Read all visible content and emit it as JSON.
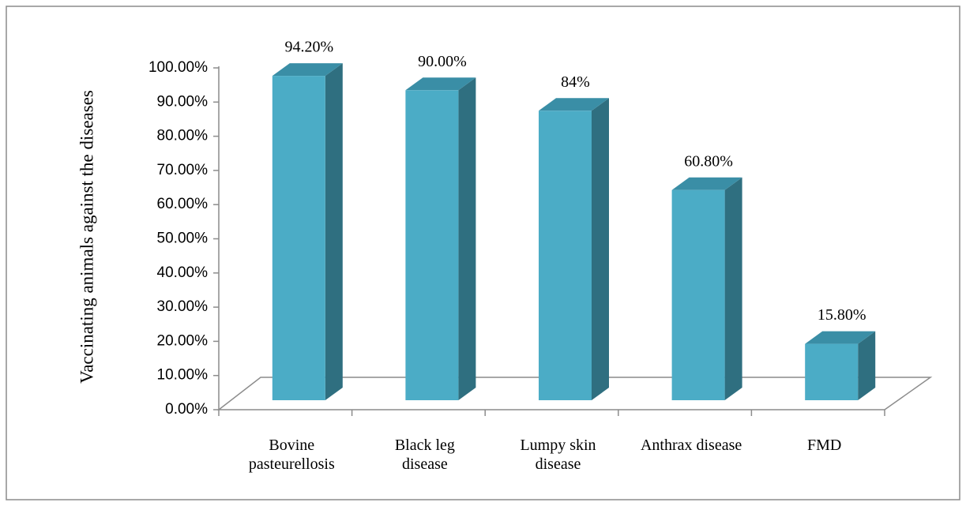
{
  "chart_data": {
    "type": "bar3d",
    "y_label": "Vaccinating animals against the diseases",
    "categories": [
      "Bovine pasteurellosis",
      "Black leg disease",
      "Lumpy skin disease",
      "Anthrax disease",
      "FMD"
    ],
    "values": [
      94.2,
      90,
      84,
      60.8,
      15.8
    ],
    "value_labels": [
      "94.20%",
      "90.00%",
      "84%",
      "60.80%",
      "15.80%"
    ],
    "color": "#4bacc6",
    "ylim": [
      0,
      100
    ],
    "yticks": [
      {
        "value": 0,
        "label": "0.00%"
      },
      {
        "value": 10,
        "label": "10.00%"
      },
      {
        "value": 20,
        "label": "20.00%"
      },
      {
        "value": 30,
        "label": "30.00%"
      },
      {
        "value": 40,
        "label": "40.00%"
      },
      {
        "value": 50,
        "label": "50.00%"
      },
      {
        "value": 60,
        "label": "60.00%"
      },
      {
        "value": 70,
        "label": "70.00%"
      },
      {
        "value": 80,
        "label": "80.00%"
      },
      {
        "value": 90,
        "label": "90.00%"
      },
      {
        "value": 100,
        "label": "100.00%"
      }
    ]
  }
}
